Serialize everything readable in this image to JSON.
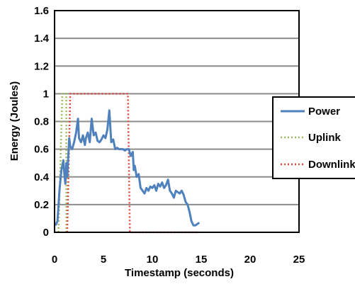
{
  "chart_data": {
    "type": "line",
    "title": "",
    "xlabel": "Timestamp (seconds)",
    "ylabel": "Energy (Joules)",
    "xlim": [
      0,
      25
    ],
    "ylim": [
      0,
      1.6
    ],
    "x_ticks": [
      "0",
      "5",
      "10",
      "15",
      "20",
      "25"
    ],
    "y_ticks": [
      "0",
      "0.2",
      "0.4",
      "0.6",
      "0.8",
      "1",
      "1.2",
      "1.4",
      "1.6"
    ],
    "grid": "horizontal",
    "legend_position": "right",
    "series": [
      {
        "name": "Power",
        "color": "#4f81bd",
        "style": "solid",
        "x": [
          0.1,
          0.3,
          0.5,
          0.7,
          0.9,
          1.0,
          1.1,
          1.2,
          1.3,
          1.5,
          1.6,
          1.8,
          2.0,
          2.2,
          2.4,
          2.5,
          2.7,
          2.9,
          3.1,
          3.2,
          3.4,
          3.6,
          3.8,
          4.0,
          4.2,
          4.4,
          4.6,
          4.8,
          5.0,
          5.2,
          5.4,
          5.6,
          5.8,
          6.0,
          6.2,
          6.4,
          6.6,
          6.8,
          7.0,
          7.2,
          7.4,
          7.6,
          7.8,
          8.0,
          8.1,
          8.2,
          8.4,
          8.6,
          8.8,
          9.0,
          9.2,
          9.4,
          9.6,
          9.8,
          10.0,
          10.2,
          10.4,
          10.6,
          10.8,
          11.0,
          11.2,
          11.4,
          11.6,
          11.8,
          12.0,
          12.2,
          12.4,
          12.6,
          12.8,
          13.0,
          13.2,
          13.4,
          13.6,
          13.8,
          14.0,
          14.2,
          14.4,
          14.6,
          14.8
        ],
        "values": [
          0.05,
          0.08,
          0.3,
          0.45,
          0.52,
          0.42,
          0.35,
          0.5,
          0.4,
          0.68,
          0.62,
          0.6,
          0.65,
          0.72,
          0.82,
          0.68,
          0.65,
          0.7,
          0.63,
          0.68,
          0.72,
          0.65,
          0.82,
          0.7,
          0.72,
          0.66,
          0.65,
          0.67,
          0.7,
          0.68,
          0.74,
          0.88,
          0.65,
          0.67,
          0.6,
          0.61,
          0.6,
          0.6,
          0.6,
          0.59,
          0.6,
          0.6,
          0.55,
          0.58,
          0.45,
          0.48,
          0.4,
          0.42,
          0.32,
          0.3,
          0.28,
          0.32,
          0.3,
          0.33,
          0.32,
          0.34,
          0.3,
          0.35,
          0.33,
          0.36,
          0.32,
          0.34,
          0.38,
          0.3,
          0.28,
          0.25,
          0.3,
          0.29,
          0.28,
          0.3,
          0.27,
          0.22,
          0.2,
          0.15,
          0.08,
          0.05,
          0.05,
          0.06,
          0.07
        ]
      },
      {
        "name": "Uplink",
        "color": "#9bbb59",
        "style": "dotted",
        "x": [
          0.4,
          0.8,
          0.8,
          1.2,
          1.2
        ],
        "values": [
          0,
          1,
          1,
          1,
          0
        ]
      },
      {
        "name": "Downlink",
        "color": "#e0443a",
        "style": "dotted",
        "x": [
          1.3,
          1.6,
          7.5,
          7.7,
          14.8
        ],
        "values": [
          0,
          1,
          1,
          0,
          0
        ]
      }
    ]
  }
}
